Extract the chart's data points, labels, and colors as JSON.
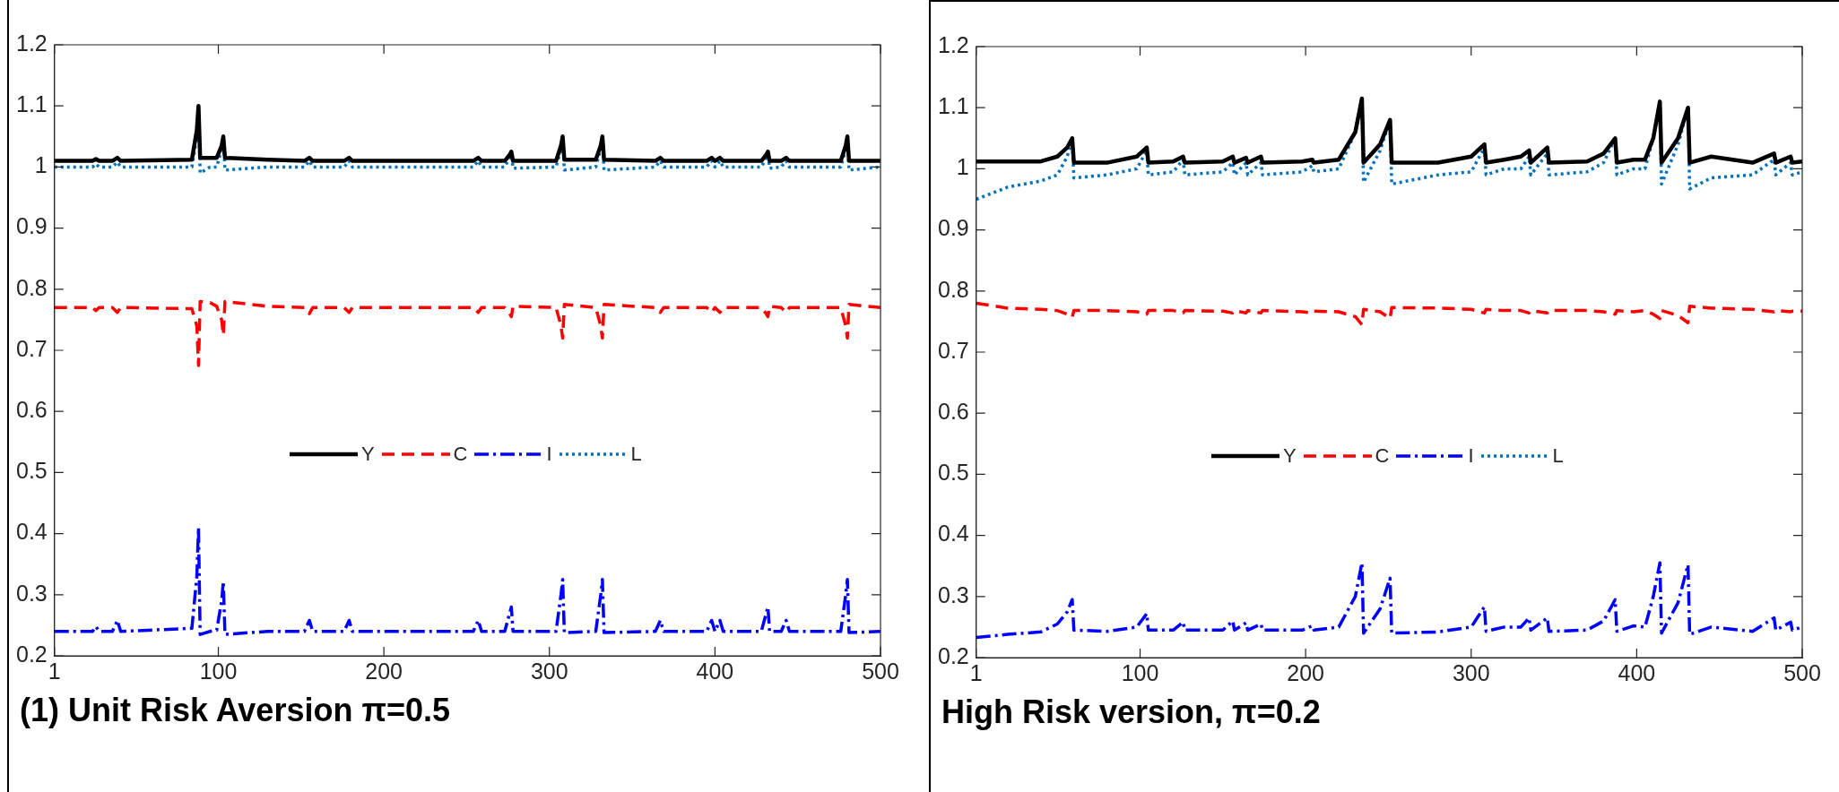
{
  "chart_data": [
    {
      "type": "line",
      "title": "(1) Unit Risk Aversion π=0.5",
      "legend": "center",
      "marker": "none",
      "xlim": [
        1,
        500
      ],
      "xticks": [
        1,
        100,
        200,
        300,
        400,
        500
      ],
      "ylim": [
        0.2,
        1.2
      ],
      "yticks": [
        0.2,
        0.3,
        0.4,
        0.5,
        0.6,
        0.7,
        0.8,
        0.9,
        1,
        1.1,
        1.2
      ],
      "x": [
        1,
        24,
        26,
        28,
        36,
        39,
        41,
        84,
        87,
        88,
        89,
        95,
        99,
        102,
        103,
        104,
        130,
        152,
        155,
        157,
        176,
        179,
        181,
        254,
        257,
        259,
        273,
        276,
        277,
        278,
        304,
        307,
        308,
        309,
        328,
        331,
        332,
        333,
        364,
        367,
        369,
        395,
        398,
        400,
        403,
        405,
        428,
        431,
        432,
        433,
        440,
        443,
        445,
        476,
        479,
        480,
        481,
        500
      ],
      "series": [
        {
          "name": "Y",
          "color": "#000000",
          "line_style": "solid",
          "values": [
            1.01,
            1.01,
            1.013,
            1.01,
            1.01,
            1.015,
            1.01,
            1.012,
            1.06,
            1.1,
            1.015,
            1.015,
            1.015,
            1.035,
            1.05,
            1.015,
            1.012,
            1.01,
            1.015,
            1.01,
            1.01,
            1.015,
            1.01,
            1.01,
            1.015,
            1.01,
            1.01,
            1.02,
            1.025,
            1.01,
            1.01,
            1.035,
            1.05,
            1.012,
            1.012,
            1.035,
            1.05,
            1.012,
            1.01,
            1.015,
            1.01,
            1.01,
            1.015,
            1.01,
            1.015,
            1.01,
            1.01,
            1.02,
            1.025,
            1.01,
            1.01,
            1.015,
            1.01,
            1.01,
            1.035,
            1.05,
            1.01,
            1.01
          ]
        },
        {
          "name": "C",
          "color": "#ff0000",
          "line_style": "dashed",
          "values": [
            0.77,
            0.77,
            0.765,
            0.77,
            0.77,
            0.762,
            0.77,
            0.768,
            0.74,
            0.675,
            0.78,
            0.778,
            0.772,
            0.75,
            0.725,
            0.78,
            0.772,
            0.77,
            0.76,
            0.77,
            0.77,
            0.762,
            0.77,
            0.77,
            0.762,
            0.77,
            0.77,
            0.76,
            0.755,
            0.772,
            0.77,
            0.74,
            0.72,
            0.775,
            0.77,
            0.74,
            0.72,
            0.775,
            0.77,
            0.762,
            0.77,
            0.77,
            0.762,
            0.77,
            0.762,
            0.77,
            0.77,
            0.76,
            0.755,
            0.772,
            0.77,
            0.762,
            0.77,
            0.77,
            0.74,
            0.72,
            0.775,
            0.77
          ]
        },
        {
          "name": "I",
          "color": "#0000ff",
          "line_style": "dashdot",
          "values": [
            0.24,
            0.24,
            0.248,
            0.24,
            0.24,
            0.258,
            0.24,
            0.245,
            0.33,
            0.41,
            0.235,
            0.24,
            0.242,
            0.29,
            0.322,
            0.235,
            0.24,
            0.24,
            0.258,
            0.24,
            0.24,
            0.258,
            0.24,
            0.24,
            0.258,
            0.24,
            0.24,
            0.27,
            0.28,
            0.24,
            0.24,
            0.3,
            0.325,
            0.238,
            0.24,
            0.3,
            0.325,
            0.238,
            0.24,
            0.258,
            0.24,
            0.24,
            0.258,
            0.24,
            0.258,
            0.24,
            0.24,
            0.27,
            0.28,
            0.24,
            0.24,
            0.258,
            0.24,
            0.24,
            0.3,
            0.325,
            0.238,
            0.24
          ]
        },
        {
          "name": "L",
          "color": "#0072bd",
          "line_style": "dotted",
          "values": [
            1.0,
            1.0,
            1.005,
            1.0,
            1.0,
            1.008,
            1.0,
            1.0,
            1.05,
            1.1,
            0.99,
            1.0,
            1.0,
            1.03,
            1.05,
            0.995,
            1.0,
            1.0,
            1.01,
            1.0,
            1.0,
            1.01,
            1.0,
            1.0,
            1.01,
            1.0,
            1.0,
            1.015,
            1.025,
            0.998,
            1.0,
            1.03,
            1.05,
            0.995,
            1.0,
            1.03,
            1.05,
            0.995,
            1.0,
            1.01,
            1.0,
            1.0,
            1.01,
            1.0,
            1.01,
            1.0,
            1.0,
            1.015,
            1.025,
            0.998,
            1.0,
            1.01,
            1.0,
            1.0,
            1.03,
            1.05,
            0.995,
            1.0
          ]
        }
      ]
    },
    {
      "type": "line",
      "title": "High Risk version, π=0.2",
      "legend": "center",
      "marker": "none",
      "xlim": [
        1,
        500
      ],
      "xticks": [
        1,
        100,
        200,
        300,
        400,
        500
      ],
      "ylim": [
        0.2,
        1.2
      ],
      "yticks": [
        0.2,
        0.3,
        0.4,
        0.5,
        0.6,
        0.7,
        0.8,
        0.9,
        1,
        1.1,
        1.2
      ],
      "x": [
        1,
        20,
        40,
        50,
        56,
        59,
        60,
        80,
        98,
        104,
        105,
        120,
        126,
        127,
        150,
        156,
        157,
        164,
        165,
        173,
        174,
        198,
        204,
        205,
        220,
        230,
        234,
        235,
        245,
        251,
        252,
        280,
        300,
        308,
        309,
        320,
        330,
        335,
        336,
        346,
        347,
        370,
        380,
        387,
        388,
        398,
        405,
        410,
        414,
        415,
        425,
        431,
        432,
        445,
        470,
        483,
        484,
        493,
        494,
        500
      ],
      "series": [
        {
          "name": "Y",
          "color": "#000000",
          "line_style": "solid",
          "values": [
            1.012,
            1.012,
            1.012,
            1.02,
            1.035,
            1.05,
            1.01,
            1.01,
            1.02,
            1.035,
            1.01,
            1.012,
            1.02,
            1.01,
            1.012,
            1.02,
            1.01,
            1.018,
            1.01,
            1.02,
            1.01,
            1.012,
            1.015,
            1.01,
            1.015,
            1.06,
            1.115,
            1.01,
            1.04,
            1.08,
            1.01,
            1.01,
            1.02,
            1.04,
            1.01,
            1.015,
            1.02,
            1.03,
            1.01,
            1.035,
            1.01,
            1.012,
            1.025,
            1.05,
            1.01,
            1.015,
            1.015,
            1.05,
            1.11,
            1.01,
            1.05,
            1.1,
            1.01,
            1.02,
            1.01,
            1.025,
            1.01,
            1.02,
            1.01,
            1.012
          ]
        },
        {
          "name": "C",
          "color": "#ff0000",
          "line_style": "dashed",
          "values": [
            0.78,
            0.772,
            0.77,
            0.768,
            0.762,
            0.757,
            0.768,
            0.768,
            0.766,
            0.762,
            0.768,
            0.768,
            0.764,
            0.768,
            0.767,
            0.764,
            0.768,
            0.764,
            0.768,
            0.764,
            0.768,
            0.766,
            0.764,
            0.767,
            0.766,
            0.758,
            0.745,
            0.77,
            0.766,
            0.755,
            0.773,
            0.772,
            0.77,
            0.764,
            0.77,
            0.768,
            0.768,
            0.764,
            0.768,
            0.764,
            0.768,
            0.768,
            0.766,
            0.762,
            0.768,
            0.766,
            0.768,
            0.762,
            0.755,
            0.768,
            0.76,
            0.748,
            0.775,
            0.772,
            0.77,
            0.766,
            0.768,
            0.766,
            0.767,
            0.767
          ]
        },
        {
          "name": "I",
          "color": "#0000ff",
          "line_style": "dashdot",
          "values": [
            0.233,
            0.238,
            0.242,
            0.255,
            0.275,
            0.295,
            0.245,
            0.243,
            0.25,
            0.272,
            0.245,
            0.245,
            0.258,
            0.245,
            0.245,
            0.26,
            0.245,
            0.257,
            0.245,
            0.255,
            0.245,
            0.245,
            0.252,
            0.245,
            0.25,
            0.3,
            0.355,
            0.24,
            0.28,
            0.33,
            0.24,
            0.242,
            0.25,
            0.283,
            0.243,
            0.25,
            0.25,
            0.265,
            0.245,
            0.265,
            0.243,
            0.245,
            0.26,
            0.295,
            0.243,
            0.252,
            0.25,
            0.3,
            0.355,
            0.24,
            0.29,
            0.352,
            0.238,
            0.25,
            0.243,
            0.265,
            0.245,
            0.258,
            0.245,
            0.25
          ]
        },
        {
          "name": "L",
          "color": "#0072bd",
          "line_style": "dotted",
          "values": [
            0.95,
            0.97,
            0.98,
            0.99,
            1.02,
            1.05,
            0.985,
            0.99,
            1.0,
            1.03,
            0.99,
            0.995,
            1.015,
            0.99,
            0.995,
            1.01,
            0.99,
            1.01,
            0.99,
            1.01,
            0.99,
            0.995,
            1.005,
            0.995,
            1.0,
            1.06,
            1.115,
            0.978,
            1.03,
            1.08,
            0.975,
            0.99,
            0.995,
            1.035,
            0.99,
            1.0,
            1.0,
            1.02,
            0.99,
            1.025,
            0.99,
            0.995,
            1.01,
            1.05,
            0.99,
            1.0,
            1.0,
            1.05,
            1.11,
            0.975,
            1.04,
            1.1,
            0.967,
            0.985,
            0.99,
            1.015,
            0.99,
            1.01,
            0.99,
            0.995
          ]
        }
      ]
    }
  ]
}
